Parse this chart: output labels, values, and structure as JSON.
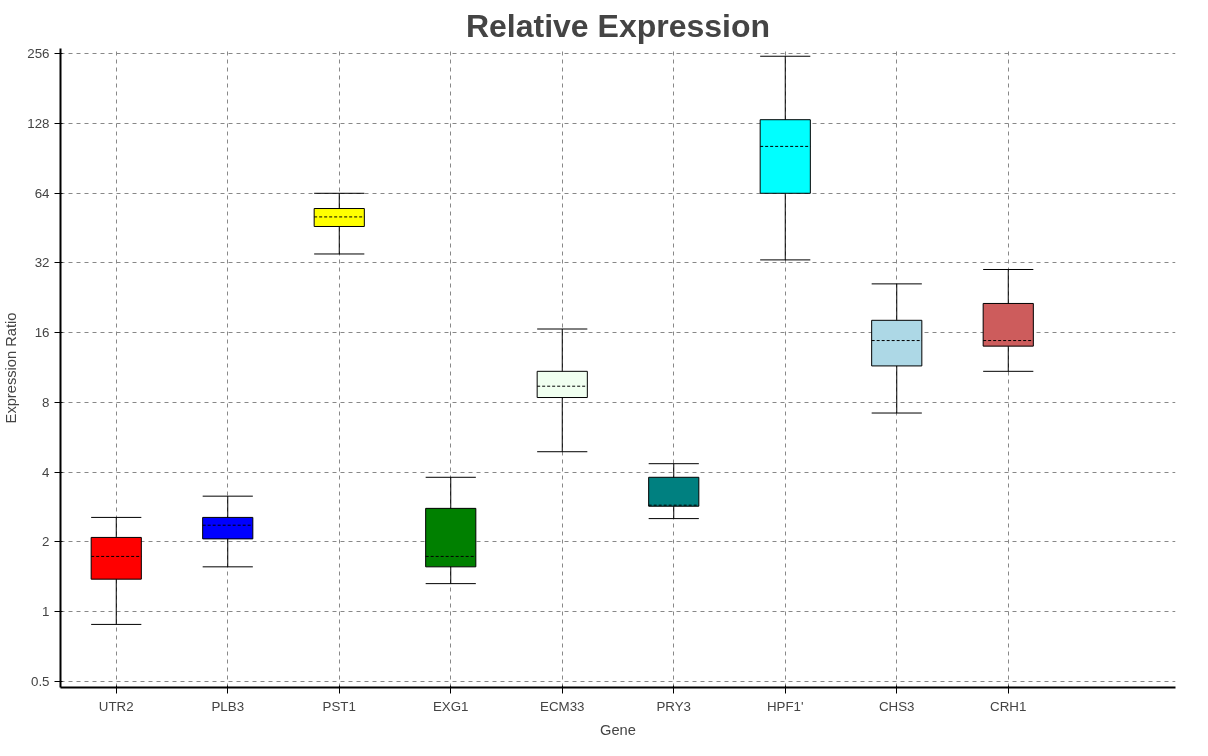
{
  "chart_data": {
    "type": "box",
    "title": "Relative Expression",
    "xlabel": "Gene",
    "ylabel": "Expression Ratio",
    "categories": [
      "UTR2",
      "PLB3",
      "PST1",
      "EXG1",
      "ECM33",
      "PRY3",
      "HPF1'",
      "CHS3",
      "CRH1"
    ],
    "colors": [
      "#ff0000",
      "#0000ff",
      "#ffff00",
      "#008000",
      "#f0fff0",
      "#008080",
      "#00ffff",
      "#add8e6",
      "#cd5c5c"
    ],
    "boxes": [
      {
        "low": 0.88,
        "q1": 1.38,
        "median": 1.73,
        "q3": 2.09,
        "high": 2.55
      },
      {
        "low": 1.56,
        "q1": 2.06,
        "median": 2.36,
        "q3": 2.55,
        "high": 3.15
      },
      {
        "low": 35,
        "q1": 46,
        "median": 50.6,
        "q3": 55,
        "high": 64
      },
      {
        "low": 1.32,
        "q1": 1.56,
        "median": 1.73,
        "q3": 2.79,
        "high": 3.8
      },
      {
        "low": 4.9,
        "q1": 8.4,
        "median": 9.4,
        "q3": 10.9,
        "high": 16.6
      },
      {
        "low": 2.52,
        "q1": 2.85,
        "median": 2.88,
        "q3": 3.8,
        "high": 4.35
      },
      {
        "low": 33,
        "q1": 64,
        "median": 102,
        "q3": 133,
        "high": 250
      },
      {
        "low": 7.2,
        "q1": 11.5,
        "median": 14.8,
        "q3": 18.1,
        "high": 26
      },
      {
        "low": 10.9,
        "q1": 14,
        "median": 14.8,
        "q3": 21.4,
        "high": 30
      }
    ],
    "log": "y",
    "ylim": [
      0.47,
      270
    ],
    "yticks": [
      0.5,
      1,
      2,
      4,
      8,
      16,
      32,
      64,
      128,
      256
    ],
    "grid": true
  }
}
